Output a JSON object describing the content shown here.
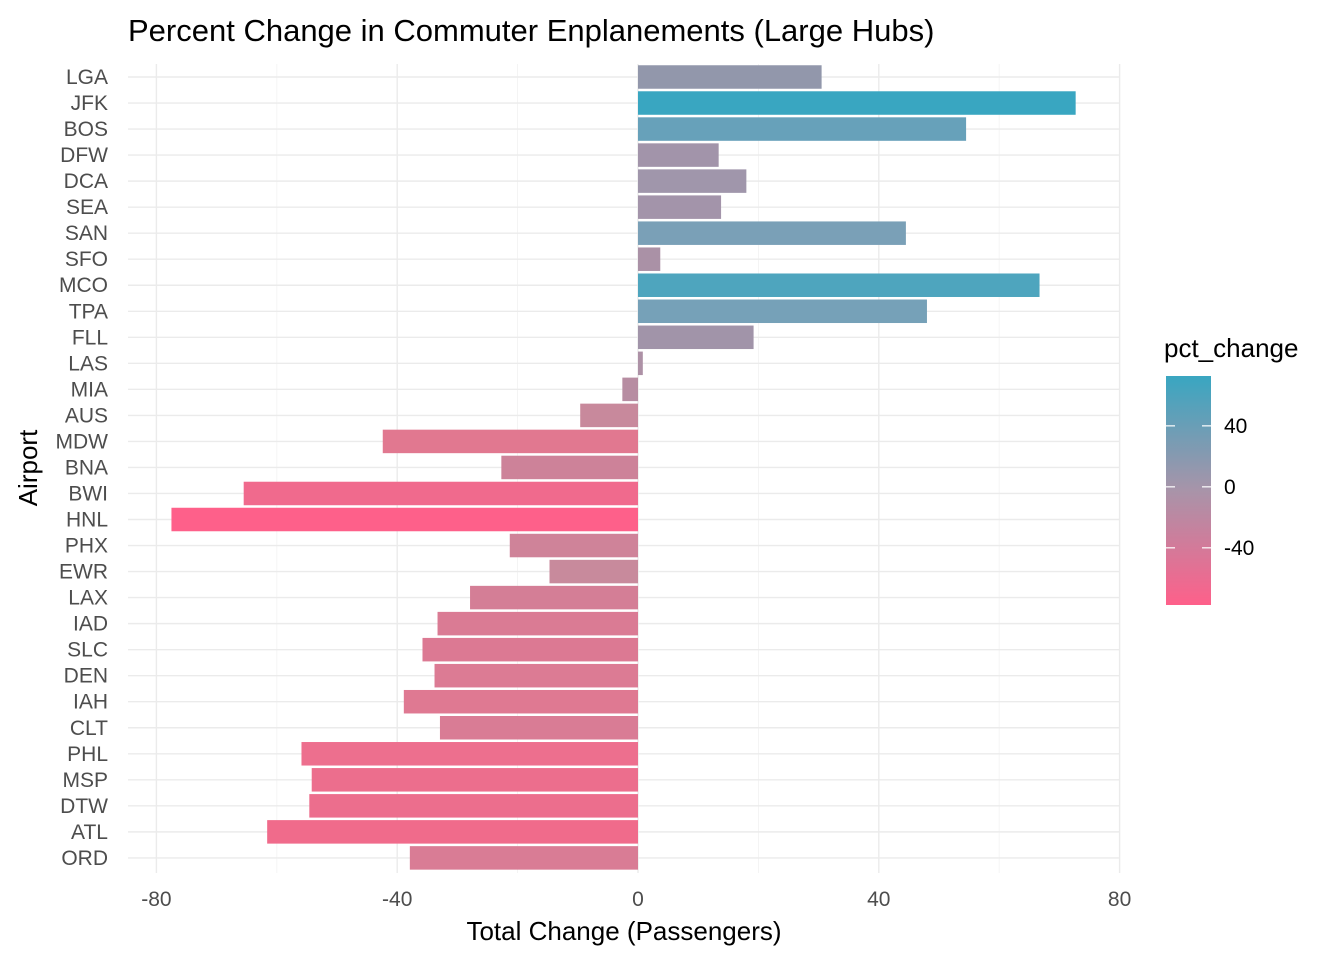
{
  "chart_data": {
    "type": "bar",
    "orientation": "horizontal",
    "title": "Percent Change in Commuter Enplanements (Large Hubs)",
    "xlabel": "Total Change (Passengers)",
    "ylabel": "Airport",
    "xlim": [
      -84,
      80
    ],
    "xticks": [
      -80,
      -40,
      0,
      40,
      80
    ],
    "xtick_labels": [
      "-80",
      "-40",
      "0",
      "40",
      "80"
    ],
    "grid": true,
    "categories": [
      "LGA",
      "JFK",
      "BOS",
      "DFW",
      "DCA",
      "SEA",
      "SAN",
      "SFO",
      "MCO",
      "TPA",
      "FLL",
      "LAS",
      "MIA",
      "AUS",
      "MDW",
      "BNA",
      "BWI",
      "HNL",
      "PHX",
      "EWR",
      "LAX",
      "IAD",
      "SLC",
      "DEN",
      "IAH",
      "CLT",
      "PHL",
      "MSP",
      "DTW",
      "ATL",
      "ORD"
    ],
    "values": [
      30.5,
      72.7,
      54.5,
      13.4,
      18.0,
      13.8,
      44.5,
      3.7,
      66.7,
      48.0,
      19.2,
      0.8,
      -2.6,
      -9.6,
      -42.4,
      -22.7,
      -65.5,
      -77.5,
      -21.3,
      -14.7,
      -27.9,
      -33.3,
      -35.8,
      -33.8,
      -38.9,
      -32.9,
      -55.9,
      -54.2,
      -54.6,
      -61.6,
      -37.9
    ],
    "colors": [
      "#9297ab",
      "#39a6c1",
      "#67a1ba",
      "#a294aa",
      "#a096ab",
      "#a394aa",
      "#7aa0b7",
      "#aa91a6",
      "#4ea5be",
      "#76a1b8",
      "#a194a9",
      "#ad91a6",
      "#b78da2",
      "#c8899c",
      "#e17890",
      "#cd8299",
      "#f06a8d",
      "#fe608a",
      "#cf8399",
      "#c88a9c",
      "#d47e96",
      "#da7b94",
      "#dc7993",
      "#dc7b94",
      "#df7992",
      "#d97c95",
      "#ed6f8e",
      "#ec6e8d",
      "#ec6e8d",
      "#f06b8b",
      "#d97c95"
    ],
    "legend": {
      "title": "pct_change",
      "position": "right",
      "ticks": [
        40,
        0,
        -40
      ],
      "tick_labels": [
        "40",
        "0",
        "-40"
      ],
      "range": [
        -77.5,
        72.7
      ],
      "color_high": "#39a6c1",
      "color_mid": "#a894a9",
      "color_low": "#fe608a"
    }
  }
}
